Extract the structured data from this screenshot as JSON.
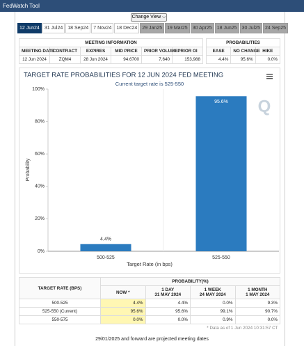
{
  "header": {
    "title": "FedWatch Tool",
    "button": "Change View"
  },
  "tabs": [
    {
      "label": "12 Jun24",
      "state": "active"
    },
    {
      "label": "31 Jul24",
      "state": "normal"
    },
    {
      "label": "18 Sep24",
      "state": "normal"
    },
    {
      "label": "7 Nov24",
      "state": "normal"
    },
    {
      "label": "18 Dec24",
      "state": "normal"
    },
    {
      "label": "29 Jan25",
      "state": "projected"
    },
    {
      "label": "19 Mar25",
      "state": "projected"
    },
    {
      "label": "30 Apr25",
      "state": "projected"
    },
    {
      "label": "18 Jun25",
      "state": "projected"
    },
    {
      "label": "30 Jul25",
      "state": "projected"
    },
    {
      "label": "24 Sep25",
      "state": "projected"
    }
  ],
  "meeting_info": {
    "title": "MEETING INFORMATION",
    "columns": [
      "MEETING DATE",
      "CONTRACT",
      "EXPIRES",
      "MID PRICE",
      "PRIOR VOLUME",
      "PRIOR OI"
    ],
    "row": [
      "12 Jun 2024",
      "ZQM4",
      "28 Jun 2024",
      "94.6700",
      "7,640",
      "153,988"
    ]
  },
  "probabilities": {
    "title": "PROBABILITIES",
    "columns": [
      "EASE",
      "NO CHANGE",
      "HIKE"
    ],
    "row": [
      "4.4%",
      "95.6%",
      "0.0%"
    ]
  },
  "chart_data": {
    "type": "bar",
    "title": "TARGET RATE PROBABILITIES FOR 12 JUN 2024 FED MEETING",
    "subtitle": "Current target rate is 525-550",
    "x_label": "Target Rate (in bps)",
    "y_label": "Probability",
    "categories": [
      "500-525",
      "525-550"
    ],
    "values": [
      4.4,
      95.6
    ],
    "value_labels": [
      "4.4%",
      "95.6%"
    ],
    "color": "#2b7bbf",
    "ylim": [
      0,
      100
    ],
    "yticks": [
      {
        "value": 0,
        "label": "0%"
      },
      {
        "value": 20,
        "label": "20%"
      },
      {
        "value": 40,
        "label": "40%"
      },
      {
        "value": 60,
        "label": "60%"
      },
      {
        "value": 80,
        "label": "80%"
      },
      {
        "value": 100,
        "label": "100%"
      }
    ]
  },
  "history_table": {
    "row_header": "TARGET RATE (BPS)",
    "title": "PROBABILITY(%)",
    "columns": [
      {
        "label": "NOW *"
      },
      {
        "label": "1 DAY",
        "date": "31 MAY 2024"
      },
      {
        "label": "1 WEEK",
        "date": "24 MAY 2024"
      },
      {
        "label": "1 MONTH",
        "date": "1 MAY 2024"
      }
    ],
    "rows": [
      [
        "500-525",
        "4.4%",
        "4.4%",
        "0.0%",
        "9.3%"
      ],
      [
        "525-550 (Current)",
        "95.6%",
        "95.6%",
        "99.1%",
        "90.7%"
      ],
      [
        "550-575",
        "0.0%",
        "0.0%",
        "0.9%",
        "0.0%"
      ]
    ],
    "note": "* Data as of 1 Jun 2024 10:31:57 CT"
  },
  "footer": "29/01/2025 and forward are projected meeting dates"
}
